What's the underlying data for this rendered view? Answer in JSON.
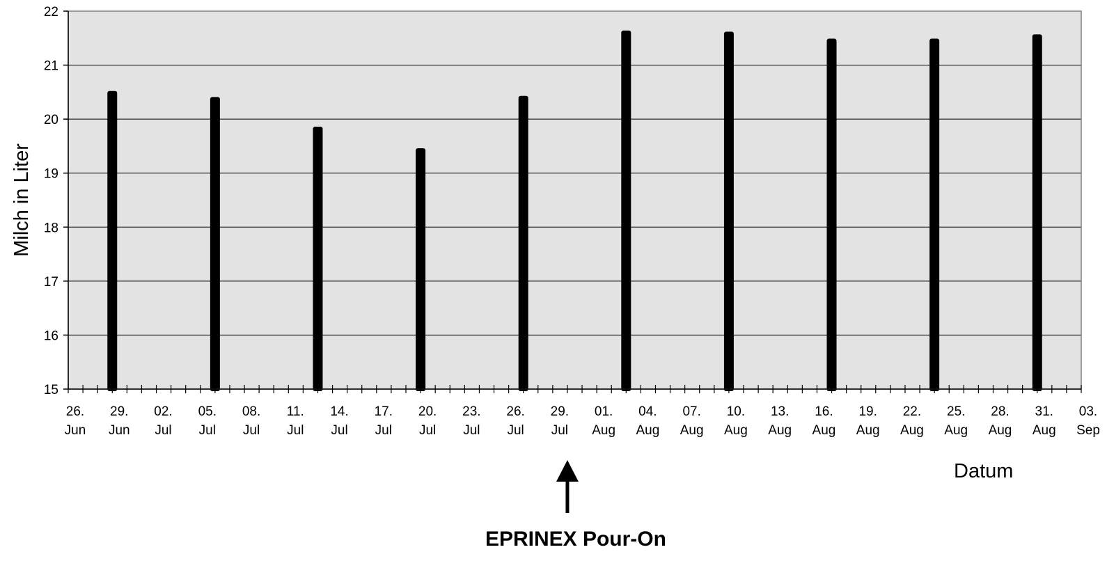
{
  "chart_data": {
    "type": "bar",
    "title": "",
    "xlabel": "Datum",
    "ylabel": "Milch in Liter",
    "ylim": [
      15,
      22
    ],
    "yticks": [
      15,
      16,
      17,
      18,
      19,
      20,
      21,
      22
    ],
    "grid": true,
    "x_axis": {
      "type": "date",
      "start": "2000-06-26",
      "end": "2000-09-03",
      "major_tick_interval_days": 3,
      "minor_tick_interval_days": 1,
      "tick_labels": [
        {
          "date": "2000-06-26",
          "line1": "26.",
          "line2": "Jun"
        },
        {
          "date": "2000-06-29",
          "line1": "29.",
          "line2": "Jun"
        },
        {
          "date": "2000-07-02",
          "line1": "02.",
          "line2": "Jul"
        },
        {
          "date": "2000-07-05",
          "line1": "05.",
          "line2": "Jul"
        },
        {
          "date": "2000-07-08",
          "line1": "08.",
          "line2": "Jul"
        },
        {
          "date": "2000-07-11",
          "line1": "11.",
          "line2": "Jul"
        },
        {
          "date": "2000-07-14",
          "line1": "14.",
          "line2": "Jul"
        },
        {
          "date": "2000-07-17",
          "line1": "17.",
          "line2": "Jul"
        },
        {
          "date": "2000-07-20",
          "line1": "20.",
          "line2": "Jul"
        },
        {
          "date": "2000-07-23",
          "line1": "23.",
          "line2": "Jul"
        },
        {
          "date": "2000-07-26",
          "line1": "26.",
          "line2": "Jul"
        },
        {
          "date": "2000-07-29",
          "line1": "29.",
          "line2": "Jul"
        },
        {
          "date": "2000-08-01",
          "line1": "01.",
          "line2": "Aug"
        },
        {
          "date": "2000-08-04",
          "line1": "04.",
          "line2": "Aug"
        },
        {
          "date": "2000-08-07",
          "line1": "07.",
          "line2": "Aug"
        },
        {
          "date": "2000-08-10",
          "line1": "10.",
          "line2": "Aug"
        },
        {
          "date": "2000-08-13",
          "line1": "13.",
          "line2": "Aug"
        },
        {
          "date": "2000-08-16",
          "line1": "16.",
          "line2": "Aug"
        },
        {
          "date": "2000-08-19",
          "line1": "19.",
          "line2": "Aug"
        },
        {
          "date": "2000-08-22",
          "line1": "22.",
          "line2": "Aug"
        },
        {
          "date": "2000-08-25",
          "line1": "25.",
          "line2": "Aug"
        },
        {
          "date": "2000-08-28",
          "line1": "28.",
          "line2": "Aug"
        },
        {
          "date": "2000-08-31",
          "line1": "31.",
          "line2": "Aug"
        },
        {
          "date": "2000-09-03",
          "line1": "03.",
          "line2": "Sep"
        }
      ]
    },
    "series": [
      {
        "points": [
          {
            "date": "2000-06-29",
            "value": 20.52
          },
          {
            "date": "2000-07-06",
            "value": 20.41
          },
          {
            "date": "2000-07-13",
            "value": 19.86
          },
          {
            "date": "2000-07-20",
            "value": 19.46
          },
          {
            "date": "2000-07-27",
            "value": 20.43
          },
          {
            "date": "2000-08-03",
            "value": 21.64
          },
          {
            "date": "2000-08-10",
            "value": 21.62
          },
          {
            "date": "2000-08-17",
            "value": 21.49
          },
          {
            "date": "2000-08-24",
            "value": 21.49
          },
          {
            "date": "2000-08-31",
            "value": 21.57
          }
        ]
      }
    ],
    "annotations": [
      {
        "text": "EPRINEX Pour-On",
        "date": "2000-07-30",
        "marker": "arrow-up"
      }
    ],
    "colors": {
      "plot_background": "#e3e3e3",
      "bars": "#000000",
      "gridlines": "#000000",
      "axes": "#000000",
      "page_background": "#ffffff"
    }
  }
}
